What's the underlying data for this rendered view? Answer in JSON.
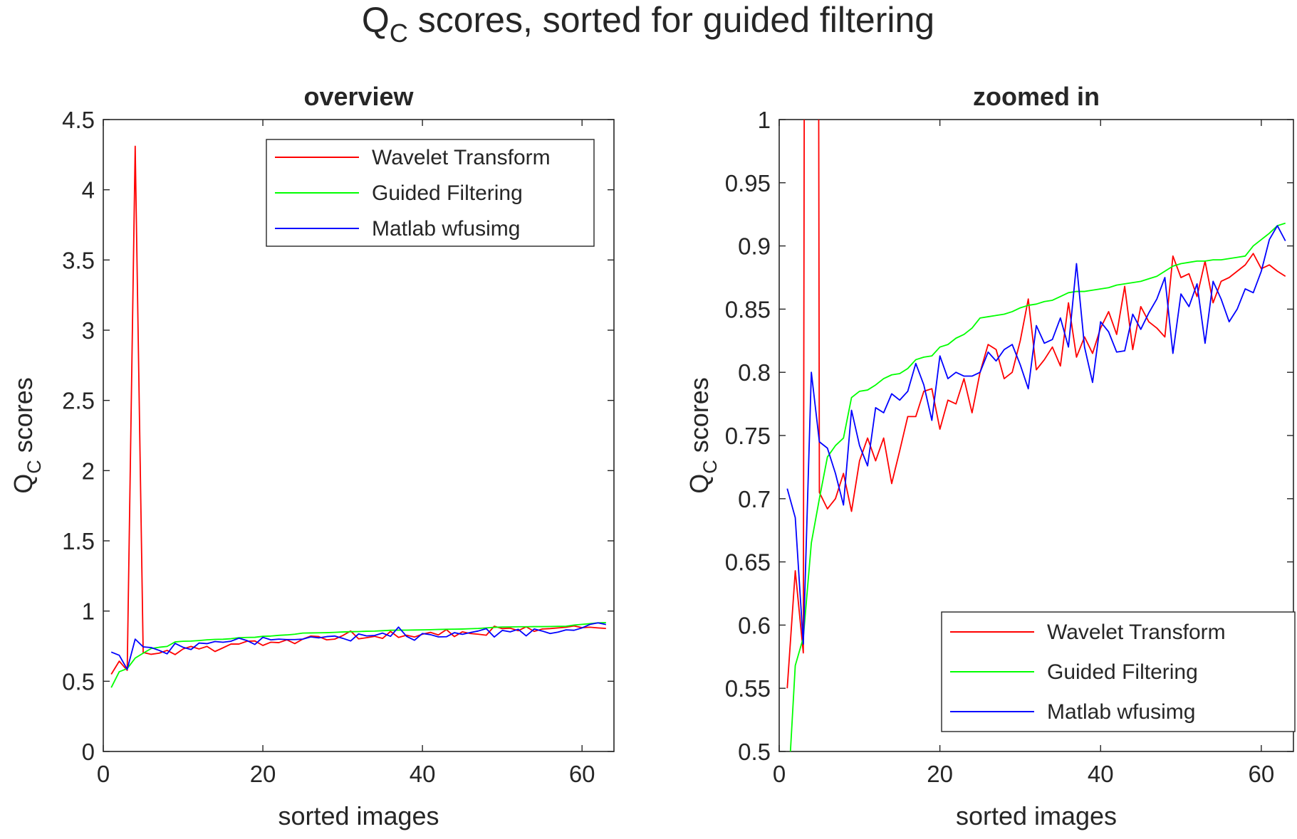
{
  "figure": {
    "title_main": "Q",
    "title_sub": "C",
    "title_rest": " scores, sorted for guided filtering"
  },
  "chart_data": [
    {
      "type": "line",
      "title": "overview",
      "xlabel": "sorted images",
      "ylabel_main": "Q",
      "ylabel_sub": "C",
      "ylabel_rest": " scores",
      "xlim": [
        0,
        64
      ],
      "ylim": [
        0,
        4.5
      ],
      "xticks": [
        0,
        20,
        40,
        60
      ],
      "yticks": [
        0,
        0.5,
        1,
        1.5,
        2,
        2.5,
        3,
        3.5,
        4,
        4.5
      ],
      "grid": false,
      "legend_position": "top-right",
      "series_ref": "shared_series"
    },
    {
      "type": "line",
      "title": "zoomed in",
      "xlabel": "sorted images",
      "ylabel_main": "Q",
      "ylabel_sub": "C",
      "ylabel_rest": " scores",
      "xlim": [
        0,
        64
      ],
      "ylim": [
        0.5,
        1
      ],
      "xticks": [
        0,
        20,
        40,
        60
      ],
      "yticks": [
        0.5,
        0.55,
        0.6,
        0.65,
        0.7,
        0.75,
        0.8,
        0.85,
        0.9,
        0.95,
        1
      ],
      "grid": false,
      "legend_position": "bottom-right",
      "series_ref": "shared_series"
    }
  ],
  "shared_series": {
    "x": [
      1,
      2,
      3,
      4,
      5,
      6,
      7,
      8,
      9,
      10,
      11,
      12,
      13,
      14,
      15,
      16,
      17,
      18,
      19,
      20,
      21,
      22,
      23,
      24,
      25,
      26,
      27,
      28,
      29,
      30,
      31,
      32,
      33,
      34,
      35,
      36,
      37,
      38,
      39,
      40,
      41,
      42,
      43,
      44,
      45,
      46,
      47,
      48,
      49,
      50,
      51,
      52,
      53,
      54,
      55,
      56,
      57,
      58,
      59,
      60,
      61,
      62,
      63
    ],
    "series": [
      {
        "name": "Wavelet Transform",
        "color": "#ff0000",
        "values": [
          0.55,
          0.643,
          0.578,
          4.31,
          0.705,
          0.692,
          0.7,
          0.72,
          0.69,
          0.73,
          0.748,
          0.73,
          0.748,
          0.712,
          0.738,
          0.765,
          0.765,
          0.785,
          0.787,
          0.755,
          0.778,
          0.775,
          0.795,
          0.768,
          0.8,
          0.822,
          0.818,
          0.795,
          0.8,
          0.825,
          0.858,
          0.802,
          0.81,
          0.82,
          0.805,
          0.855,
          0.812,
          0.828,
          0.815,
          0.835,
          0.848,
          0.83,
          0.868,
          0.818,
          0.852,
          0.84,
          0.835,
          0.828,
          0.892,
          0.875,
          0.878,
          0.86,
          0.888,
          0.855,
          0.872,
          0.875,
          0.88,
          0.885,
          0.894,
          0.882,
          0.885,
          0.88,
          0.876
        ]
      },
      {
        "name": "Guided Filtering",
        "color": "#00ff00",
        "values": [
          0.455,
          0.568,
          0.59,
          0.665,
          0.7,
          0.733,
          0.742,
          0.748,
          0.78,
          0.785,
          0.786,
          0.79,
          0.795,
          0.798,
          0.799,
          0.803,
          0.81,
          0.812,
          0.813,
          0.82,
          0.822,
          0.827,
          0.83,
          0.835,
          0.843,
          0.844,
          0.845,
          0.846,
          0.848,
          0.851,
          0.853,
          0.854,
          0.856,
          0.857,
          0.86,
          0.863,
          0.864,
          0.864,
          0.865,
          0.866,
          0.867,
          0.869,
          0.87,
          0.871,
          0.872,
          0.874,
          0.876,
          0.88,
          0.884,
          0.886,
          0.887,
          0.888,
          0.888,
          0.889,
          0.889,
          0.89,
          0.891,
          0.892,
          0.9,
          0.905,
          0.91,
          0.916,
          0.918
        ]
      },
      {
        "name": "Matlab wfusimg",
        "color": "#0000ff",
        "values": [
          0.708,
          0.685,
          0.585,
          0.8,
          0.745,
          0.74,
          0.72,
          0.695,
          0.77,
          0.742,
          0.726,
          0.772,
          0.768,
          0.783,
          0.778,
          0.785,
          0.807,
          0.79,
          0.762,
          0.813,
          0.795,
          0.8,
          0.797,
          0.797,
          0.8,
          0.816,
          0.809,
          0.818,
          0.822,
          0.806,
          0.787,
          0.837,
          0.823,
          0.826,
          0.843,
          0.82,
          0.886,
          0.82,
          0.792,
          0.84,
          0.832,
          0.816,
          0.817,
          0.846,
          0.834,
          0.847,
          0.858,
          0.875,
          0.815,
          0.862,
          0.852,
          0.87,
          0.823,
          0.872,
          0.858,
          0.84,
          0.85,
          0.866,
          0.863,
          0.88,
          0.905,
          0.916,
          0.904
        ]
      }
    ]
  }
}
